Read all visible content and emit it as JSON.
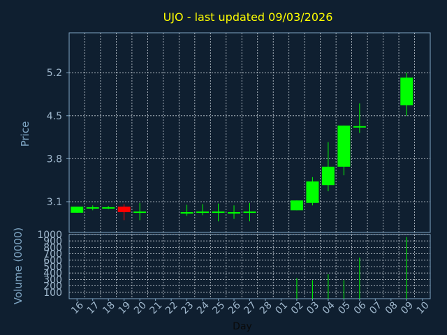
{
  "colors": {
    "background": "#0f1f30",
    "frame": "#7fa6c4",
    "grid": "#c8d0d8",
    "title": "#ffff00",
    "axis_text": "#7fa6c4",
    "tick_text": "#9fb7cc",
    "day_label": "#0a0a0a",
    "up": "#00ff00",
    "down": "#ff0000"
  },
  "chart_data": [
    {
      "type": "candlestick",
      "title": "UJO - last updated 09/03/2026",
      "ylabel": "Price",
      "ylim": [
        2.6,
        5.85
      ],
      "yticks": [
        3.1,
        3.8,
        4.5,
        5.2
      ],
      "ytick_labels": [
        "3.1",
        "3.8",
        "4.5",
        "5.2"
      ],
      "categories": [
        "16",
        "17",
        "18",
        "19",
        "20",
        "21",
        "22",
        "23",
        "24",
        "25",
        "26",
        "27",
        "28",
        "01",
        "02",
        "03",
        "04",
        "05",
        "06",
        "07",
        "08",
        "09",
        "10"
      ],
      "candles": [
        {
          "day": "16",
          "open": 2.92,
          "close": 3.02,
          "high": 3.02,
          "low": 2.92
        },
        {
          "day": "17",
          "open": 3.0,
          "close": 3.01,
          "high": 3.04,
          "low": 2.96
        },
        {
          "day": "18",
          "open": 3.0,
          "close": 3.01,
          "high": 3.03,
          "low": 2.98
        },
        {
          "day": "19",
          "open": 3.02,
          "close": 2.93,
          "high": 3.06,
          "low": 2.8
        },
        {
          "day": "20",
          "open": 2.93,
          "close": 2.94,
          "high": 3.08,
          "low": 2.8
        },
        {
          "day": "23",
          "open": 2.92,
          "close": 2.93,
          "high": 3.05,
          "low": 2.87
        },
        {
          "day": "24",
          "open": 2.92,
          "close": 2.94,
          "high": 3.06,
          "low": 2.88
        },
        {
          "day": "25",
          "open": 2.93,
          "close": 2.94,
          "high": 3.07,
          "low": 2.78
        },
        {
          "day": "26",
          "open": 2.92,
          "close": 2.93,
          "high": 3.04,
          "low": 2.82
        },
        {
          "day": "27",
          "open": 2.93,
          "close": 2.94,
          "high": 3.08,
          "low": 2.78
        },
        {
          "day": "02",
          "open": 2.96,
          "close": 3.12,
          "high": 3.12,
          "low": 2.96
        },
        {
          "day": "03",
          "open": 3.08,
          "close": 3.43,
          "high": 3.5,
          "low": 3.04
        },
        {
          "day": "04",
          "open": 3.37,
          "close": 3.67,
          "high": 4.07,
          "low": 3.27
        },
        {
          "day": "05",
          "open": 3.67,
          "close": 4.34,
          "high": 4.34,
          "low": 3.53
        },
        {
          "day": "06",
          "open": 4.32,
          "close": 4.33,
          "high": 4.7,
          "low": 4.22
        },
        {
          "day": "09",
          "open": 4.67,
          "close": 5.12,
          "high": 5.2,
          "low": 4.5
        }
      ]
    },
    {
      "type": "bar",
      "ylabel": "Volume (0000)",
      "xlabel": "Day",
      "ylim": [
        0,
        1000
      ],
      "yticks": [
        100,
        200,
        300,
        400,
        500,
        600,
        700,
        800,
        900,
        1000
      ],
      "ytick_labels": [
        "100",
        "200",
        "300",
        "400",
        "500",
        "600",
        "700",
        "800",
        "900",
        "1000"
      ],
      "volumes": [
        {
          "day": "02",
          "value": 320
        },
        {
          "day": "03",
          "value": 290
        },
        {
          "day": "04",
          "value": 380
        },
        {
          "day": "05",
          "value": 290
        },
        {
          "day": "06",
          "value": 640
        },
        {
          "day": "09",
          "value": 960
        }
      ]
    }
  ]
}
